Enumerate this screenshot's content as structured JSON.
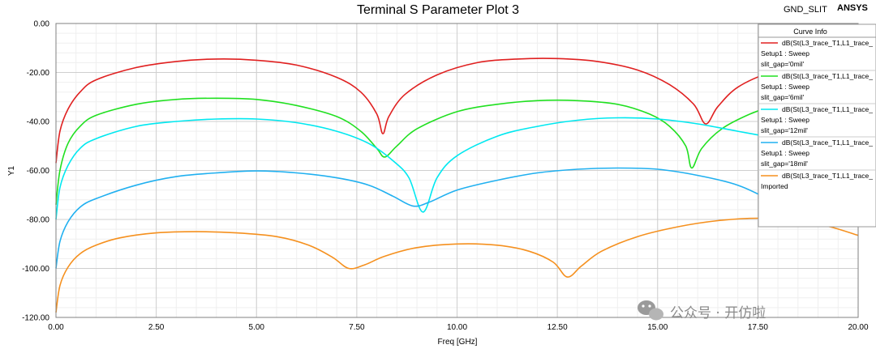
{
  "header": {
    "title": "Terminal S Parameter Plot 3",
    "design_name": "GND_SLIT",
    "brand": "ANSYS"
  },
  "legend": {
    "title": "Curve Info",
    "entries": [
      {
        "line1": "dB(St(L3_trace_T1,L1_trace_",
        "line2": "Setup1 : Sweep",
        "line3": "slit_gap='0mil'"
      },
      {
        "line1": "dB(St(L3_trace_T1,L1_trace_",
        "line2": "Setup1 : Sweep",
        "line3": "slit_gap='6mil'"
      },
      {
        "line1": "dB(St(L3_trace_T1,L1_trace_",
        "line2": "Setup1 : Sweep",
        "line3": "slit_gap='12mil'"
      },
      {
        "line1": "dB(St(L3_trace_T1,L1_trace_",
        "line2": "Setup1 : Sweep",
        "line3": "slit_gap='18mil'"
      },
      {
        "line1": "dB(St(L3_trace_T1,L1_trace_",
        "line2": "Imported",
        "line3": ""
      }
    ]
  },
  "watermark": {
    "text": "公众号 · 开仿啦",
    "icon": "wechat-icon"
  },
  "chart_data": {
    "type": "line",
    "title": "Terminal S Parameter Plot 3",
    "xlabel": "Freq [GHz]",
    "ylabel": "Y1",
    "xlim": [
      0,
      20
    ],
    "ylim": [
      -120,
      0
    ],
    "x_ticks": [
      "0.00",
      "2.50",
      "5.00",
      "7.50",
      "10.00",
      "12.50",
      "15.00",
      "17.50",
      "20.00"
    ],
    "y_ticks": [
      "0.00",
      "-20.00",
      "-40.00",
      "-60.00",
      "-80.00",
      "-100.00",
      "-120.00"
    ],
    "grid": true,
    "legend_position": "top-right",
    "series": [
      {
        "color": "#e02020",
        "points": [
          [
            0.0,
            -57
          ],
          [
            0.1,
            -44
          ],
          [
            0.3,
            -35
          ],
          [
            0.6,
            -28
          ],
          [
            1.0,
            -23
          ],
          [
            2.0,
            -18
          ],
          [
            3.0,
            -15.5
          ],
          [
            4.0,
            -14.5
          ],
          [
            5.0,
            -15
          ],
          [
            6.0,
            -17
          ],
          [
            7.0,
            -22
          ],
          [
            7.6,
            -28
          ],
          [
            8.0,
            -37
          ],
          [
            8.15,
            -45
          ],
          [
            8.3,
            -38
          ],
          [
            8.7,
            -29
          ],
          [
            9.5,
            -21
          ],
          [
            10.5,
            -16
          ],
          [
            11.5,
            -14.5
          ],
          [
            12.5,
            -14.3
          ],
          [
            13.5,
            -15.5
          ],
          [
            14.5,
            -19
          ],
          [
            15.3,
            -25
          ],
          [
            15.9,
            -33
          ],
          [
            16.2,
            -41
          ],
          [
            16.5,
            -34
          ],
          [
            17.0,
            -26
          ],
          [
            17.8,
            -20
          ],
          [
            18.5,
            -18
          ]
        ]
      },
      {
        "color": "#20e020",
        "points": [
          [
            0.0,
            -74
          ],
          [
            0.1,
            -60
          ],
          [
            0.3,
            -49
          ],
          [
            0.6,
            -42
          ],
          [
            1.0,
            -37.5
          ],
          [
            2.0,
            -33
          ],
          [
            3.0,
            -31
          ],
          [
            4.0,
            -30.5
          ],
          [
            5.0,
            -31
          ],
          [
            6.0,
            -33.5
          ],
          [
            7.0,
            -38
          ],
          [
            7.6,
            -44
          ],
          [
            8.0,
            -51
          ],
          [
            8.2,
            -54.5
          ],
          [
            8.5,
            -50
          ],
          [
            9.0,
            -43
          ],
          [
            10.0,
            -36
          ],
          [
            11.0,
            -33
          ],
          [
            12.0,
            -31.5
          ],
          [
            13.0,
            -31.5
          ],
          [
            14.0,
            -33
          ],
          [
            14.8,
            -37
          ],
          [
            15.3,
            -42
          ],
          [
            15.7,
            -50
          ],
          [
            15.85,
            -59
          ],
          [
            16.1,
            -51
          ],
          [
            16.6,
            -43
          ],
          [
            17.3,
            -37
          ],
          [
            18.0,
            -33
          ]
        ]
      },
      {
        "color": "#00e8f0",
        "points": [
          [
            0.0,
            -80
          ],
          [
            0.1,
            -67
          ],
          [
            0.3,
            -58
          ],
          [
            0.6,
            -51
          ],
          [
            1.0,
            -47
          ],
          [
            2.0,
            -42
          ],
          [
            3.0,
            -40
          ],
          [
            4.0,
            -39
          ],
          [
            5.0,
            -39
          ],
          [
            6.0,
            -40.5
          ],
          [
            7.0,
            -44
          ],
          [
            7.8,
            -49
          ],
          [
            8.4,
            -56
          ],
          [
            8.8,
            -63
          ],
          [
            9.15,
            -77
          ],
          [
            9.5,
            -63
          ],
          [
            10.0,
            -54
          ],
          [
            11.0,
            -46
          ],
          [
            12.0,
            -42
          ],
          [
            13.0,
            -39.5
          ],
          [
            14.0,
            -38.5
          ],
          [
            15.0,
            -39
          ],
          [
            16.0,
            -41
          ],
          [
            17.0,
            -44
          ],
          [
            18.0,
            -47
          ]
        ]
      },
      {
        "color": "#20b0f0",
        "points": [
          [
            0.0,
            -100
          ],
          [
            0.1,
            -89
          ],
          [
            0.3,
            -81
          ],
          [
            0.6,
            -75
          ],
          [
            1.0,
            -71.5
          ],
          [
            2.0,
            -66
          ],
          [
            3.0,
            -62.5
          ],
          [
            4.0,
            -61
          ],
          [
            5.0,
            -60.2
          ],
          [
            6.0,
            -61
          ],
          [
            7.0,
            -63
          ],
          [
            7.8,
            -66
          ],
          [
            8.4,
            -70.5
          ],
          [
            8.9,
            -74.5
          ],
          [
            9.3,
            -73
          ],
          [
            10.0,
            -68
          ],
          [
            11.0,
            -64
          ],
          [
            12.0,
            -61
          ],
          [
            13.0,
            -59.5
          ],
          [
            14.0,
            -59
          ],
          [
            15.0,
            -59.5
          ],
          [
            16.0,
            -62
          ],
          [
            17.0,
            -66
          ],
          [
            17.8,
            -72
          ],
          [
            18.2,
            -75
          ],
          [
            18.5,
            -74
          ]
        ]
      },
      {
        "color": "#f5901e",
        "points": [
          [
            0.0,
            -118
          ],
          [
            0.1,
            -107
          ],
          [
            0.3,
            -99.5
          ],
          [
            0.6,
            -94
          ],
          [
            1.0,
            -90.5
          ],
          [
            1.6,
            -87.5
          ],
          [
            2.5,
            -85.5
          ],
          [
            3.5,
            -85
          ],
          [
            4.5,
            -85.5
          ],
          [
            5.5,
            -87
          ],
          [
            6.3,
            -90.5
          ],
          [
            6.9,
            -95.5
          ],
          [
            7.3,
            -100
          ],
          [
            7.7,
            -98.5
          ],
          [
            8.2,
            -95
          ],
          [
            9.0,
            -91.5
          ],
          [
            10.0,
            -90
          ],
          [
            11.0,
            -90.5
          ],
          [
            11.8,
            -93
          ],
          [
            12.4,
            -97.5
          ],
          [
            12.75,
            -103.5
          ],
          [
            13.1,
            -99
          ],
          [
            13.6,
            -93
          ],
          [
            14.5,
            -87
          ],
          [
            15.5,
            -83
          ],
          [
            16.5,
            -80.5
          ],
          [
            17.5,
            -79.5
          ],
          [
            18.5,
            -80.5
          ],
          [
            19.3,
            -83
          ],
          [
            20.0,
            -86.5
          ]
        ]
      }
    ]
  }
}
